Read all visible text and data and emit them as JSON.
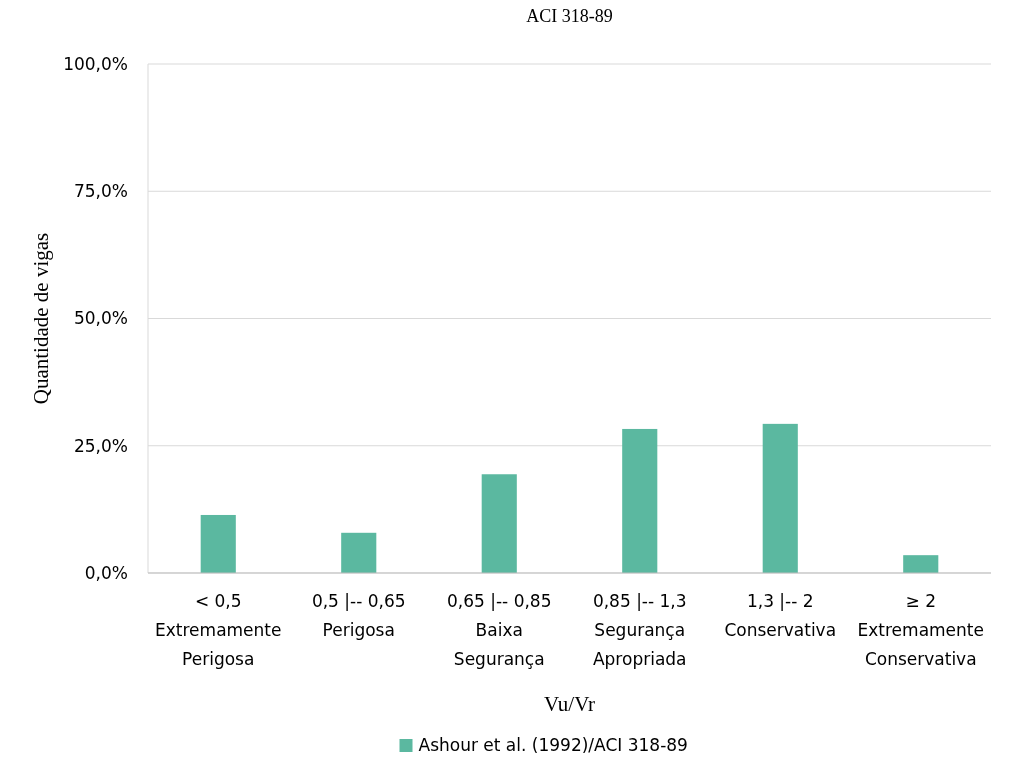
{
  "chart_data": {
    "type": "bar",
    "title": "ACI 318-89",
    "xlabel": "Vu/Vr",
    "ylabel": "Quantidade de vigas",
    "categories": [
      "< 0,5\nExtremamente\nPerigosa",
      "0,5 |-- 0,65\nPerigosa",
      "0,65 |-- 0,85\nBaixa\nSegurança",
      "0,85 |-- 1,3\nSegurança\nApropriada",
      "1,3 |-- 2\nConservativa",
      "≥ 2\nExtremamente\nConservativa"
    ],
    "series": [
      {
        "name": "Ashour et al. (1992)/ACI 318-89",
        "color": "#5bb8a0",
        "values": [
          11.4,
          7.9,
          19.4,
          28.3,
          29.3,
          3.5
        ]
      }
    ],
    "ylim": [
      0,
      100
    ],
    "yticks": [
      {
        "value": 0,
        "label": "0,0%"
      },
      {
        "value": 25,
        "label": "25,0%"
      },
      {
        "value": 50,
        "label": "50,0%"
      },
      {
        "value": 75,
        "label": "75,0%"
      },
      {
        "value": 100,
        "label": "100,0%"
      }
    ],
    "grid": "y",
    "legend": "bottom"
  }
}
